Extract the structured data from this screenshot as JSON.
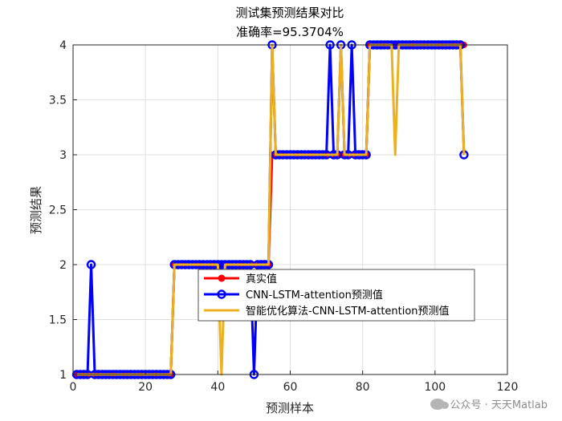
{
  "chart_data": {
    "type": "line",
    "title": "测试集预测结果对比",
    "subtitle": "准确率=95.3704%",
    "xlabel": "预测样本",
    "ylabel": "预测结果",
    "xlim": [
      0,
      120
    ],
    "ylim": [
      1,
      4
    ],
    "xticks": [
      0,
      20,
      40,
      60,
      80,
      100,
      120
    ],
    "yticks": [
      1,
      1.5,
      2,
      2.5,
      3,
      3.5,
      4
    ],
    "grid": true,
    "legend_position": "center",
    "series": [
      {
        "name": "真实值",
        "color": "#ff0000",
        "marker": "filled-circle",
        "values": [
          1,
          1,
          1,
          1,
          1,
          1,
          1,
          1,
          1,
          1,
          1,
          1,
          1,
          1,
          1,
          1,
          1,
          1,
          1,
          1,
          1,
          1,
          1,
          1,
          1,
          1,
          1,
          2,
          2,
          2,
          2,
          2,
          2,
          2,
          2,
          2,
          2,
          2,
          2,
          2,
          2,
          2,
          2,
          2,
          2,
          2,
          2,
          2,
          2,
          2,
          2,
          2,
          2,
          2,
          3,
          3,
          3,
          3,
          3,
          3,
          3,
          3,
          3,
          3,
          3,
          3,
          3,
          3,
          3,
          3,
          3,
          3,
          3,
          3,
          3,
          3,
          3,
          3,
          3,
          3,
          3,
          4,
          4,
          4,
          4,
          4,
          4,
          4,
          4,
          4,
          4,
          4,
          4,
          4,
          4,
          4,
          4,
          4,
          4,
          4,
          4,
          4,
          4,
          4,
          4,
          4,
          4,
          4
        ]
      },
      {
        "name": "CNN-LSTM-attention预测值",
        "color": "#0000ff",
        "marker": "open-circle",
        "values": [
          1,
          1,
          1,
          1,
          2,
          1,
          1,
          1,
          1,
          1,
          1,
          1,
          1,
          1,
          1,
          1,
          1,
          1,
          1,
          1,
          1,
          1,
          1,
          1,
          1,
          1,
          1,
          2,
          2,
          2,
          2,
          2,
          2,
          2,
          2,
          2,
          2,
          2,
          2,
          2,
          2,
          2,
          2,
          2,
          2,
          2,
          2,
          2,
          2,
          1,
          2,
          2,
          2,
          2,
          4,
          3,
          3,
          3,
          3,
          3,
          3,
          3,
          3,
          3,
          3,
          3,
          3,
          3,
          3,
          3,
          4,
          3,
          3,
          4,
          3,
          3,
          4,
          3,
          3,
          3,
          3,
          4,
          4,
          4,
          4,
          4,
          4,
          4,
          4,
          4,
          4,
          4,
          4,
          4,
          4,
          4,
          4,
          4,
          4,
          4,
          4,
          4,
          4,
          4,
          4,
          4,
          4,
          3
        ]
      },
      {
        "name": "智能优化算法-CNN-LSTM-attention预测值",
        "color": "#edb120",
        "marker": "none",
        "values": [
          1,
          1,
          1,
          1,
          1,
          1,
          1,
          1,
          1,
          1,
          1,
          1,
          1,
          1,
          1,
          1,
          1,
          1,
          1,
          1,
          1,
          1,
          1,
          1,
          1,
          1,
          1,
          2,
          2,
          2,
          2,
          2,
          2,
          2,
          2,
          2,
          2,
          2,
          2,
          2,
          1,
          2,
          2,
          2,
          2,
          2,
          2,
          2,
          2,
          2,
          2,
          2,
          2,
          2,
          4,
          3,
          3,
          3,
          3,
          3,
          3,
          3,
          3,
          3,
          3,
          3,
          3,
          3,
          3,
          3,
          3,
          3,
          3,
          4,
          3,
          3,
          3,
          3,
          3,
          3,
          3,
          4,
          4,
          4,
          4,
          4,
          4,
          4,
          3,
          4,
          4,
          4,
          4,
          4,
          4,
          4,
          4,
          4,
          4,
          4,
          4,
          4,
          4,
          4,
          4,
          4,
          4,
          3
        ]
      }
    ]
  },
  "watermark": {
    "text": "公众号 · 天天Matlab",
    "icon": "wechat-icon"
  }
}
